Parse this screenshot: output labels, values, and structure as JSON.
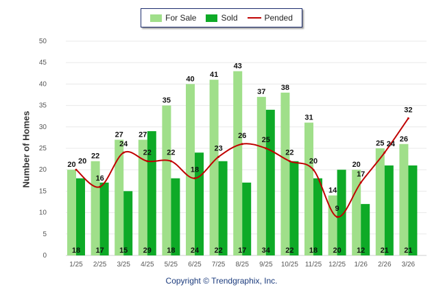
{
  "chart_data": {
    "type": "bar",
    "title": "",
    "xlabel": "",
    "ylabel": "Number of Homes",
    "ylim": [
      0,
      50
    ],
    "yticks": [
      0,
      5,
      10,
      15,
      20,
      25,
      30,
      35,
      40,
      45,
      50
    ],
    "grid": true,
    "legend_position": "top-center",
    "categories": [
      "1/25",
      "2/25",
      "3/25",
      "4/25",
      "5/25",
      "6/25",
      "7/25",
      "8/25",
      "9/25",
      "10/25",
      "11/25",
      "12/25",
      "1/26",
      "2/26",
      "3/26"
    ],
    "series": [
      {
        "name": "For Sale",
        "type": "bar",
        "color": "#a0df8a",
        "values": [
          20,
          22,
          27,
          27,
          35,
          40,
          41,
          43,
          37,
          38,
          31,
          14,
          20,
          25,
          26
        ]
      },
      {
        "name": "Sold",
        "type": "bar",
        "color": "#0eaa27",
        "values": [
          18,
          17,
          15,
          29,
          18,
          24,
          22,
          17,
          34,
          22,
          18,
          20,
          12,
          21,
          21
        ]
      },
      {
        "name": "Pended",
        "type": "line",
        "color": "#c00000",
        "values": [
          20,
          16,
          24,
          22,
          22,
          18,
          23,
          26,
          25,
          22,
          20,
          9,
          17,
          24,
          32
        ]
      }
    ]
  },
  "footer": {
    "copyright": "Copyright © Trendgraphix, Inc."
  }
}
